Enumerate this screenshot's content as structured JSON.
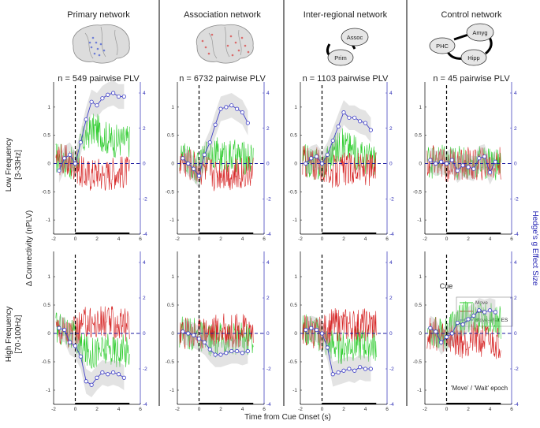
{
  "figure": {
    "columns": [
      {
        "title": "Primary network",
        "n_label": "n = 549 pairwise PLV",
        "icon": "brain-icon",
        "icon_color": "#6f7fd6"
      },
      {
        "title": "Association network",
        "n_label": "n = 6732 pairwise PLV",
        "icon": "brain-icon",
        "icon_color": "#d96a6a"
      },
      {
        "title": "Inter-regional network",
        "n_label": "n = 1103 pairwise PLV",
        "icon": "network-diagram-icon",
        "nodes": [
          "Assoc",
          "Prim"
        ]
      },
      {
        "title": "Control network",
        "n_label": "n = 45 pairwise PLV",
        "icon": "network-diagram-icon",
        "nodes": [
          "Amyg",
          "PHC",
          "Hipp"
        ]
      }
    ],
    "rows": [
      {
        "label_line1": "Low Frequency",
        "label_line2": "[3-33Hz]"
      },
      {
        "label_line1": "High Frequency",
        "label_line2": "[70-100Hz]"
      }
    ],
    "y_label_left": "Δ Connectivity (nPLV)",
    "y_label_right": "Hedge's g Effect Size",
    "x_label": "Time from Cue Onset (s)",
    "cue_label": "Cue",
    "epoch_label": "'Move' / 'Wait' epoch",
    "legend": [
      "Move",
      "Wait",
      "Move-Wait ES"
    ],
    "colors": {
      "move": "#2ecc2e",
      "wait": "#d62424",
      "es": "#4040c8",
      "cue": "#000000",
      "zero": "#1a1aa0"
    }
  },
  "chart_data": {
    "type": "line",
    "grid": "2 rows x 4 columns",
    "x_ticks": [
      -2,
      0,
      2,
      4,
      6
    ],
    "xlim": [
      -2,
      6
    ],
    "y_left_ticks": [
      -1,
      -0.5,
      0,
      0.5,
      1
    ],
    "ylim_left": [
      -1.25,
      1.25
    ],
    "y_right_ticks": [
      -4,
      -2,
      0,
      2,
      4
    ],
    "ylim_right": [
      -4,
      4
    ],
    "cue_time": 0,
    "epoch": [
      0,
      5
    ],
    "es_times": [
      -1.5,
      -1,
      -0.5,
      0,
      0.5,
      1,
      1.5,
      2,
      2.5,
      3,
      3.5,
      4,
      4.5
    ],
    "panels": [
      {
        "row": "Low Frequency",
        "col": "Primary network",
        "move_mean": [
          0.1,
          0.05,
          0.0,
          0.0,
          0.3,
          0.5,
          0.6,
          0.6,
          0.5,
          0.45,
          0.4,
          0.4,
          0.4
        ],
        "wait_mean": [
          0.1,
          0.05,
          0.0,
          0.0,
          -0.15,
          -0.2,
          -0.2,
          -0.15,
          -0.2,
          -0.2,
          -0.15,
          -0.15,
          -0.15
        ],
        "es": [
          -0.4,
          0.3,
          0.5,
          0.0,
          1.2,
          2.5,
          3.5,
          3.3,
          3.7,
          3.9,
          4.0,
          3.8,
          3.8
        ]
      },
      {
        "row": "Low Frequency",
        "col": "Association network",
        "move_mean": [
          0.1,
          0.05,
          -0.05,
          -0.1,
          0.1,
          0.25,
          0.2,
          0.1,
          0.15,
          0.1,
          0.15,
          0.1,
          0.1
        ],
        "wait_mean": [
          0.05,
          0.0,
          -0.05,
          -0.1,
          -0.1,
          -0.15,
          -0.2,
          -0.15,
          -0.15,
          -0.2,
          -0.2,
          -0.15,
          -0.15
        ],
        "es": [
          0.3,
          0.0,
          -0.3,
          -0.7,
          0.5,
          1.2,
          2.2,
          3.1,
          3.2,
          3.3,
          3.1,
          2.9,
          2.3
        ]
      },
      {
        "row": "Low Frequency",
        "col": "Inter-regional network",
        "move_mean": [
          0.05,
          0.0,
          0.0,
          -0.05,
          0.1,
          0.2,
          0.3,
          0.35,
          0.3,
          0.2,
          0.15,
          0.1,
          0.1
        ],
        "wait_mean": [
          0.05,
          0.0,
          0.0,
          -0.05,
          -0.1,
          -0.15,
          -0.15,
          -0.1,
          -0.1,
          -0.1,
          -0.1,
          -0.1,
          -0.1
        ],
        "es": [
          0.0,
          0.3,
          0.4,
          0.0,
          0.5,
          1.3,
          2.1,
          2.9,
          2.6,
          2.6,
          2.4,
          2.3,
          1.9
        ]
      },
      {
        "row": "Low Frequency",
        "col": "Control network",
        "move_mean": [
          0.05,
          0.0,
          0.05,
          0.0,
          0.05,
          0.0,
          0.05,
          0.0,
          0.0,
          0.05,
          0.0,
          0.05,
          0.0
        ],
        "wait_mean": [
          0.0,
          0.05,
          0.0,
          -0.05,
          0.0,
          0.0,
          -0.05,
          0.0,
          -0.05,
          0.0,
          0.0,
          -0.05,
          0.0
        ],
        "es": [
          0.2,
          0.0,
          0.1,
          0.0,
          0.2,
          -0.4,
          -0.1,
          -0.2,
          -0.3,
          0.3,
          0.4,
          -0.5,
          0.1
        ]
      },
      {
        "row": "High Frequency",
        "col": "Primary network",
        "move_mean": [
          0.1,
          0.05,
          0.0,
          -0.1,
          -0.25,
          -0.3,
          -0.35,
          -0.3,
          -0.3,
          -0.3,
          -0.3,
          -0.3,
          -0.3
        ],
        "wait_mean": [
          0.1,
          0.05,
          0.0,
          0.0,
          0.1,
          0.2,
          0.2,
          0.15,
          0.2,
          0.2,
          0.2,
          0.15,
          0.15
        ],
        "es": [
          0.3,
          0.2,
          -0.5,
          -0.7,
          -1.3,
          -2.7,
          -2.9,
          -2.5,
          -2.2,
          -2.3,
          -2.2,
          -2.3,
          -2.5
        ]
      },
      {
        "row": "High Frequency",
        "col": "Association network",
        "move_mean": [
          0.05,
          0.0,
          0.0,
          -0.05,
          -0.1,
          -0.1,
          -0.15,
          -0.1,
          -0.1,
          -0.1,
          -0.1,
          -0.1,
          -0.1
        ],
        "wait_mean": [
          0.0,
          0.05,
          0.0,
          0.0,
          0.05,
          0.05,
          0.05,
          0.05,
          0.05,
          0.05,
          0.05,
          0.05,
          0.05
        ],
        "es": [
          0.1,
          0.0,
          -0.1,
          -0.3,
          -0.5,
          -0.9,
          -1.2,
          -1.2,
          -1.1,
          -1.0,
          -1.0,
          -1.1,
          -1.0
        ]
      },
      {
        "row": "High Frequency",
        "col": "Inter-regional network",
        "move_mean": [
          0.05,
          0.05,
          0.0,
          -0.05,
          -0.2,
          -0.2,
          -0.25,
          -0.25,
          -0.2,
          -0.2,
          -0.2,
          -0.2,
          -0.2
        ],
        "wait_mean": [
          0.05,
          0.05,
          0.0,
          0.0,
          0.1,
          0.15,
          0.15,
          0.15,
          0.15,
          0.15,
          0.15,
          0.15,
          0.15
        ],
        "es": [
          0.2,
          0.3,
          0.2,
          0.0,
          -0.8,
          -2.3,
          -2.2,
          -2.1,
          -2.0,
          -2.1,
          -1.9,
          -2.0,
          -2.0
        ]
      },
      {
        "row": "High Frequency",
        "col": "Control network",
        "move_mean": [
          0.05,
          0.0,
          0.05,
          0.0,
          0.15,
          0.2,
          0.25,
          0.3,
          0.3,
          0.25,
          0.3,
          0.25,
          0.2
        ],
        "wait_mean": [
          0.0,
          0.0,
          -0.05,
          -0.05,
          -0.1,
          -0.1,
          -0.15,
          -0.1,
          -0.1,
          -0.15,
          -0.1,
          -0.15,
          -0.15
        ],
        "es": [
          0.3,
          0.1,
          -0.5,
          -0.2,
          0.0,
          0.6,
          0.5,
          0.8,
          1.0,
          1.3,
          1.2,
          1.3,
          1.2
        ]
      }
    ]
  }
}
